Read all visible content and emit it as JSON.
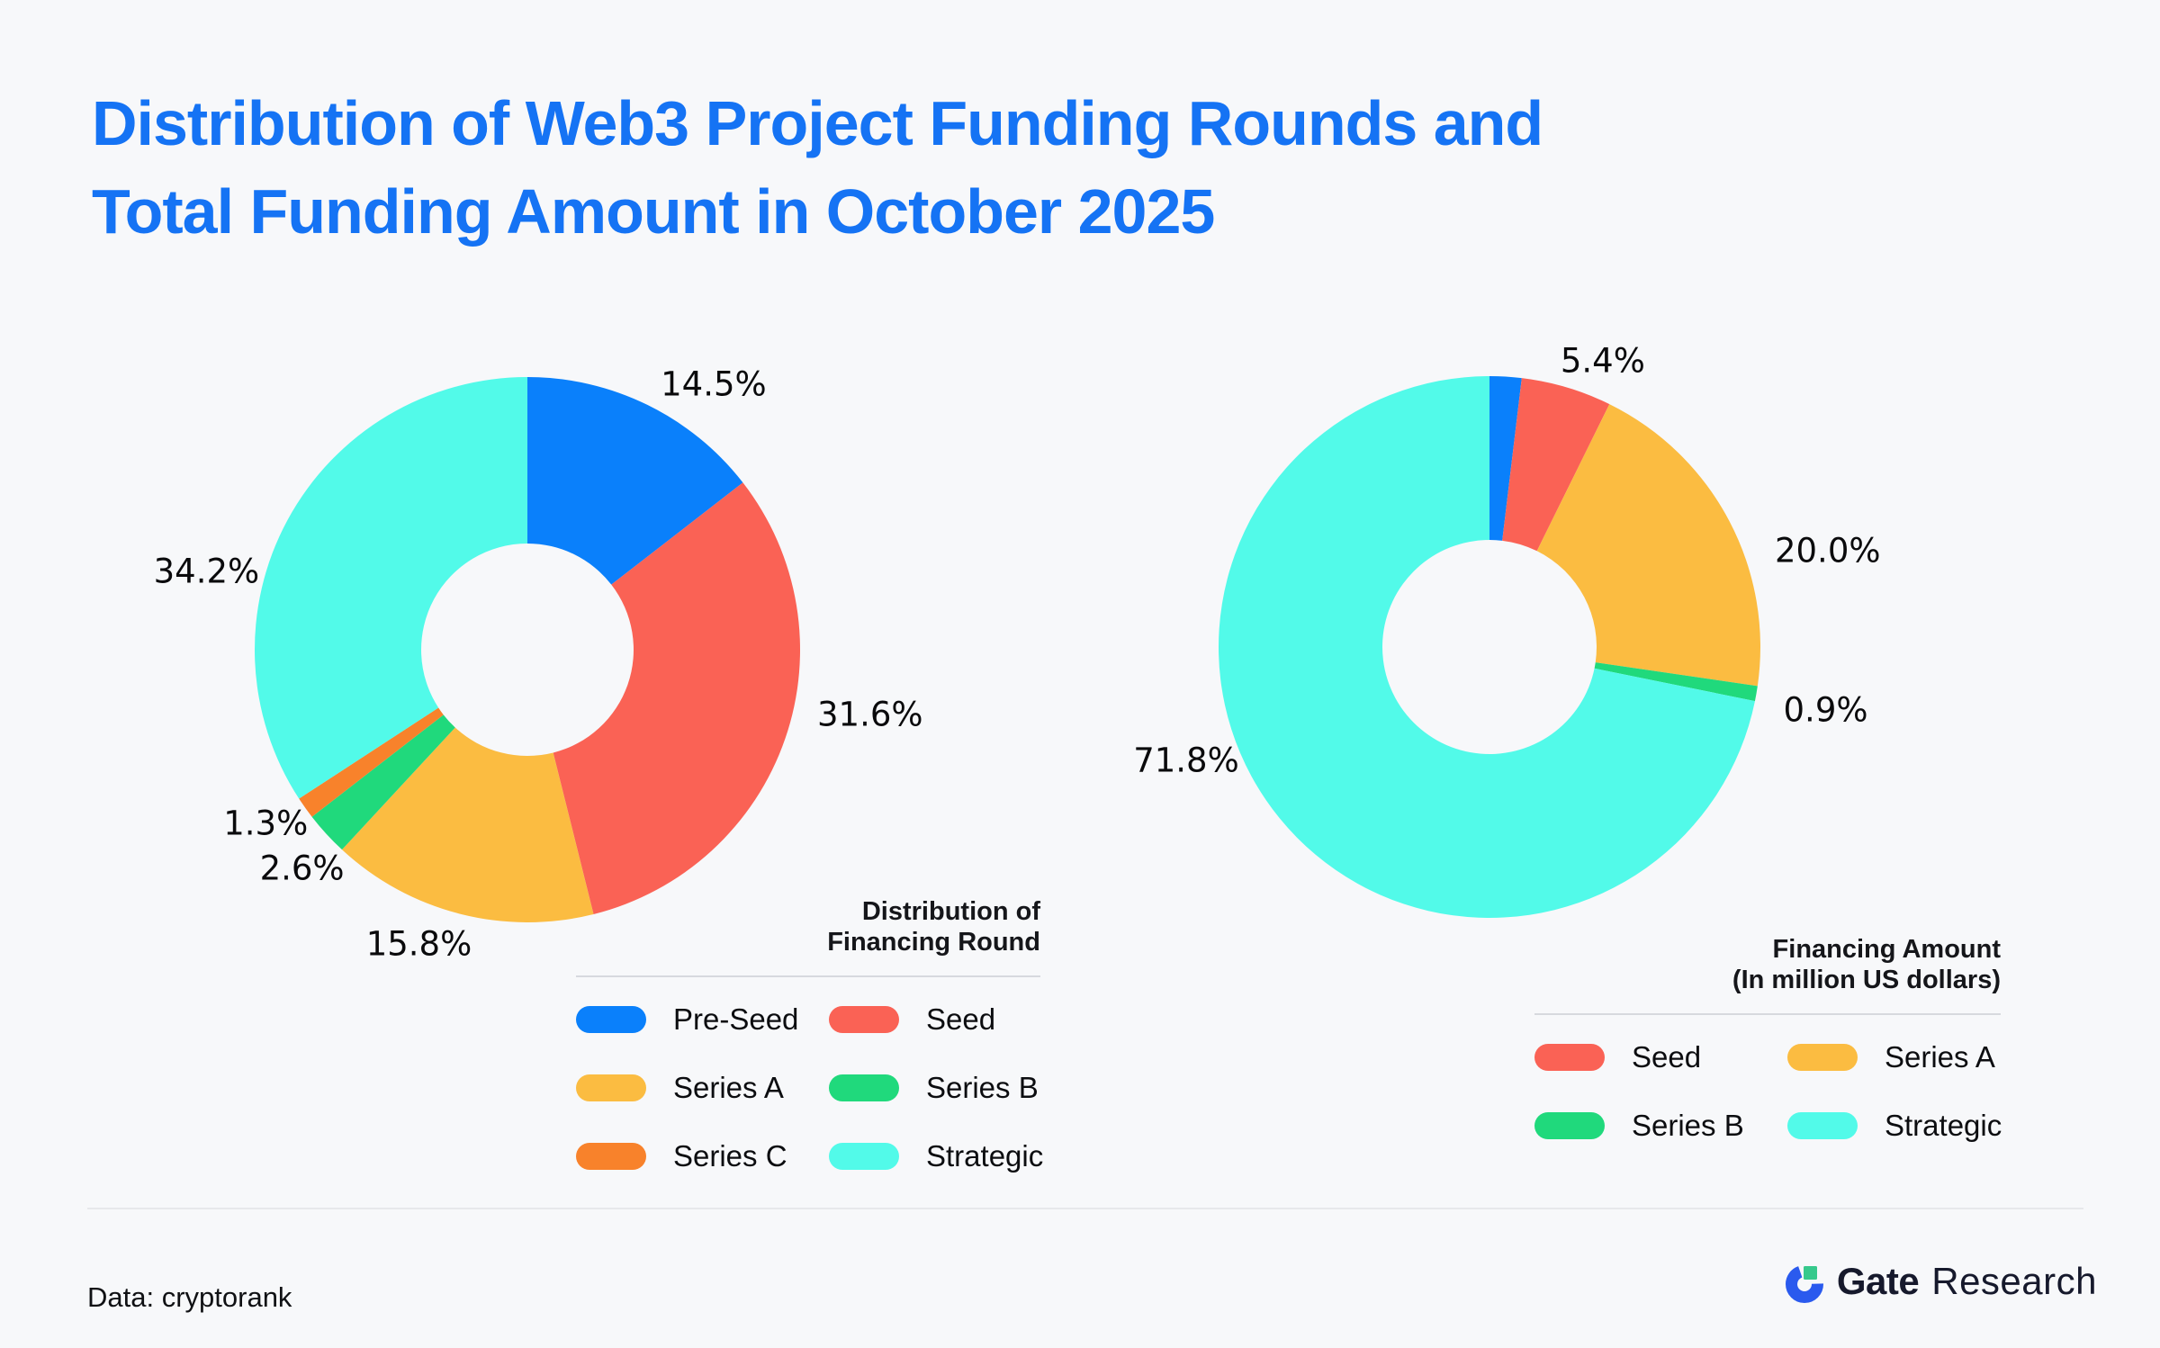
{
  "page": {
    "background": "#f7f8fa"
  },
  "title": {
    "line1": "Distribution of Web3 Project Funding Rounds and",
    "line2": "Total Funding Amount in October 2025",
    "color": "#1573f4"
  },
  "chart_data": [
    {
      "type": "pie",
      "subtype": "donut",
      "title": "Distribution of Financing Round",
      "legend_title_lines": [
        "Distribution of",
        "Financing Round"
      ],
      "start_angle_deg": 0,
      "direction": "clockwise",
      "slices": [
        {
          "name": "Pre-Seed",
          "value_pct": 14.5,
          "label": "14.5%",
          "color": "#0a80fb"
        },
        {
          "name": "Seed",
          "value_pct": 31.6,
          "label": "31.6%",
          "color": "#fa6255"
        },
        {
          "name": "Series A",
          "value_pct": 15.8,
          "label": "15.8%",
          "color": "#fbbc41"
        },
        {
          "name": "Series B",
          "value_pct": 2.6,
          "label": "2.6%",
          "color": "#20d97c"
        },
        {
          "name": "Series C",
          "value_pct": 1.3,
          "label": "1.3%",
          "color": "#f8822b"
        },
        {
          "name": "Strategic",
          "value_pct": 34.2,
          "label": "34.2%",
          "color": "#52fae9"
        }
      ],
      "legend_items": [
        {
          "label": "Pre-Seed",
          "color": "#0a80fb"
        },
        {
          "label": "Seed",
          "color": "#fa6255"
        },
        {
          "label": "Series A",
          "color": "#fbbc41"
        },
        {
          "label": "Series B",
          "color": "#20d97c"
        },
        {
          "label": "Series C",
          "color": "#f8822b"
        },
        {
          "label": "Strategic",
          "color": "#52fae9"
        }
      ]
    },
    {
      "type": "pie",
      "subtype": "donut",
      "title": "Financing Amount (In million US dollars)",
      "legend_title_lines": [
        "Financing Amount",
        "(In million US dollars)"
      ],
      "start_angle_deg": 0,
      "direction": "clockwise",
      "slices": [
        {
          "name": "Pre-Seed",
          "value_pct": 1.9,
          "label": null,
          "color": "#0a80fb"
        },
        {
          "name": "Seed",
          "value_pct": 5.4,
          "label": "5.4%",
          "color": "#fa6255"
        },
        {
          "name": "Series A",
          "value_pct": 20.0,
          "label": "20.0%",
          "color": "#fbbc41"
        },
        {
          "name": "Series B",
          "value_pct": 0.9,
          "label": "0.9%",
          "color": "#20d97c"
        },
        {
          "name": "Strategic",
          "value_pct": 71.8,
          "label": "71.8%",
          "color": "#52fae9"
        }
      ],
      "legend_items": [
        {
          "label": "Seed",
          "color": "#fa6255"
        },
        {
          "label": "Series A",
          "color": "#fbbc41"
        },
        {
          "label": "Series B",
          "color": "#20d97c"
        },
        {
          "label": "Strategic",
          "color": "#52fae9"
        }
      ]
    }
  ],
  "footer": {
    "source_label": "Data: cryptorank",
    "brand_bold": "Gate",
    "brand_regular": "Research"
  }
}
